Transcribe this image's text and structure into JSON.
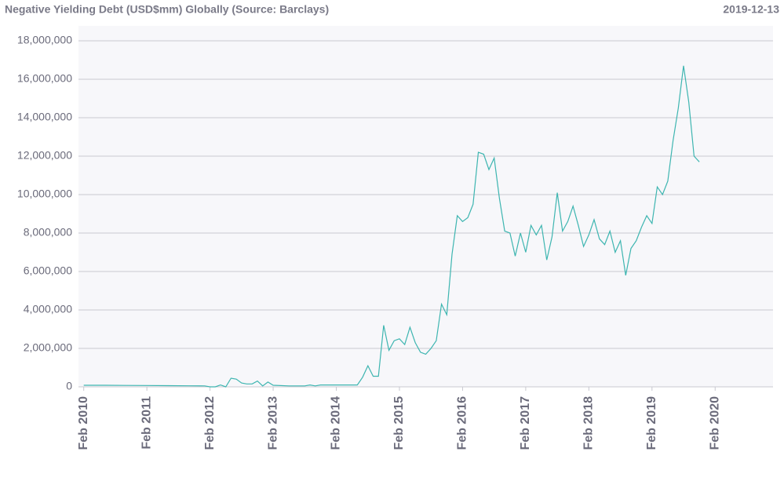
{
  "chart_data": {
    "type": "line",
    "title": "Negative Yielding Debt (USD$mm) Globally (Source: Barclays)",
    "subtitle": "2019-12-13",
    "x": [
      "2010-02",
      "2010-06",
      "2010-10",
      "2011-02",
      "2011-06",
      "2011-10",
      "2012-01",
      "2012-02",
      "2012-03",
      "2012-04",
      "2012-05",
      "2012-06",
      "2012-07",
      "2012-08",
      "2012-09",
      "2012-10",
      "2012-11",
      "2012-12",
      "2013-01",
      "2013-02",
      "2013-05",
      "2013-08",
      "2013-09",
      "2013-10",
      "2013-11",
      "2014-03",
      "2014-06",
      "2014-07",
      "2014-08",
      "2014-09",
      "2014-10",
      "2014-11",
      "2014-12",
      "2015-01",
      "2015-02",
      "2015-03",
      "2015-04",
      "2015-05",
      "2015-06",
      "2015-07",
      "2015-08",
      "2015-09",
      "2015-10",
      "2015-11",
      "2015-12",
      "2016-01",
      "2016-02",
      "2016-03",
      "2016-04",
      "2016-05",
      "2016-06",
      "2016-07",
      "2016-08",
      "2016-09",
      "2016-10",
      "2016-11",
      "2016-12",
      "2017-01",
      "2017-02",
      "2017-03",
      "2017-04",
      "2017-05",
      "2017-06",
      "2017-07",
      "2017-08",
      "2017-09",
      "2017-10",
      "2017-11",
      "2017-12",
      "2018-01",
      "2018-02",
      "2018-03",
      "2018-04",
      "2018-05",
      "2018-06",
      "2018-07",
      "2018-08",
      "2018-09",
      "2018-10",
      "2018-11",
      "2018-12",
      "2019-01",
      "2019-02",
      "2019-03",
      "2019-04",
      "2019-05",
      "2019-06",
      "2019-07",
      "2019-08",
      "2019-09",
      "2019-10",
      "2019-11"
    ],
    "series": [
      {
        "name": "Negative Yielding Debt",
        "color": "#3db5b0",
        "values": [
          80000,
          80000,
          75000,
          70000,
          60000,
          55000,
          50000,
          0,
          0,
          100000,
          0,
          450000,
          400000,
          200000,
          150000,
          150000,
          300000,
          50000,
          250000,
          80000,
          50000,
          50000,
          100000,
          50000,
          100000,
          100000,
          100000,
          500000,
          1100000,
          550000,
          550000,
          3200000,
          1900000,
          2400000,
          2500000,
          2200000,
          3100000,
          2300000,
          1800000,
          1700000,
          2000000,
          2400000,
          4300000,
          3750000,
          6900000,
          8900000,
          8600000,
          8800000,
          9500000,
          12200000,
          12100000,
          11300000,
          11900000,
          9800000,
          8100000,
          8000000,
          6800000,
          8000000,
          7000000,
          8400000,
          7900000,
          8400000,
          6600000,
          7800000,
          10100000,
          8100000,
          8600000,
          9400000,
          8400000,
          7300000,
          7900000,
          8700000,
          7700000,
          7400000,
          8100000,
          7000000,
          7600000,
          5800000,
          7200000,
          7600000,
          8300000,
          8900000,
          8500000,
          10400000,
          10000000,
          10700000,
          12800000,
          14500000,
          16700000,
          14800000,
          12000000,
          11700000
        ]
      }
    ],
    "xlim": [
      "2010-01",
      "2021-01"
    ],
    "xticks": [
      {
        "value": "2010-02",
        "label": "Feb 2010"
      },
      {
        "value": "2011-02",
        "label": "Feb 2011"
      },
      {
        "value": "2012-02",
        "label": "Feb 2012"
      },
      {
        "value": "2013-02",
        "label": "Feb 2013"
      },
      {
        "value": "2014-02",
        "label": "Feb 2014"
      },
      {
        "value": "2015-02",
        "label": "Feb 2015"
      },
      {
        "value": "2016-02",
        "label": "Feb 2016"
      },
      {
        "value": "2017-02",
        "label": "Feb 2017"
      },
      {
        "value": "2018-02",
        "label": "Feb 2018"
      },
      {
        "value": "2019-02",
        "label": "Feb 2019"
      },
      {
        "value": "2020-02",
        "label": "Feb 2020"
      }
    ],
    "ylim": [
      0,
      18000000
    ],
    "yticks": [
      0,
      {
        "value": 2000000,
        "label": "2,000,000"
      },
      {
        "value": 4000000,
        "label": "4,000,000"
      },
      {
        "value": 6000000,
        "label": "6,000,000"
      },
      {
        "value": 8000000,
        "label": "8,000,000"
      },
      {
        "value": 10000000,
        "label": "10,000,000"
      },
      {
        "value": 12000000,
        "label": "12,000,000"
      },
      {
        "value": 14000000,
        "label": "14,000,000"
      },
      {
        "value": 16000000,
        "label": "16,000,000"
      },
      {
        "value": {
          "value": 18000000,
          "label": "18,000,000"
        }
      }
    ],
    "grid": true
  }
}
